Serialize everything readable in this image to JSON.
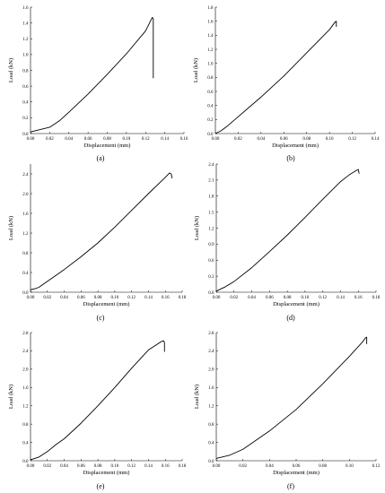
{
  "chart_data": [
    {
      "type": "line",
      "panel_label": "(a)",
      "xlabel": "Displacement (mm)",
      "ylabel": "Load (kN)",
      "xlim": [
        0,
        0.16
      ],
      "ylim": [
        0,
        1.6
      ],
      "xticks": [
        "0.00",
        "0.02",
        "0.04",
        "0.06",
        "0.08",
        "0.10",
        "0.12",
        "0.14",
        "0.16"
      ],
      "yticks": [
        "0.0",
        "0.2",
        "0.4",
        "0.6",
        "0.8",
        "1.0",
        "1.2",
        "1.4",
        "1.6"
      ],
      "x": [
        0.0,
        0.01,
        0.02,
        0.03,
        0.04,
        0.06,
        0.08,
        0.1,
        0.12,
        0.127,
        0.128,
        0.128
      ],
      "y": [
        0.02,
        0.05,
        0.08,
        0.16,
        0.27,
        0.5,
        0.75,
        1.01,
        1.3,
        1.47,
        1.45,
        0.7
      ]
    },
    {
      "type": "line",
      "panel_label": "(b)",
      "xlabel": "Displacement (mm)",
      "ylabel": "Load (kN)",
      "xlim": [
        0,
        0.14
      ],
      "ylim": [
        0,
        1.8
      ],
      "xticks": [
        "0.00",
        "0.02",
        "0.04",
        "0.06",
        "0.08",
        "0.10",
        "0.12",
        "0.14"
      ],
      "yticks": [
        "0.0",
        "0.2",
        "0.4",
        "0.6",
        "0.8",
        "1.0",
        "1.2",
        "1.4",
        "1.6",
        "1.8"
      ],
      "x": [
        0.0,
        0.005,
        0.01,
        0.02,
        0.04,
        0.06,
        0.08,
        0.1,
        0.105,
        0.106,
        0.106
      ],
      "y": [
        0.0,
        0.04,
        0.1,
        0.24,
        0.52,
        0.82,
        1.15,
        1.48,
        1.59,
        1.6,
        1.52
      ]
    },
    {
      "type": "line",
      "panel_label": "(c)",
      "xlabel": "Displacement (mm)",
      "ylabel": "Load (kN)",
      "xlim": [
        0,
        0.18
      ],
      "ylim": [
        0,
        2.6
      ],
      "xticks": [
        "0.00",
        "0.02",
        "0.04",
        "0.06",
        "0.08",
        "0.10",
        "0.12",
        "0.14",
        "0.16",
        "0.18"
      ],
      "yticks": [
        "0.0",
        "0.4",
        "0.8",
        "1.2",
        "1.6",
        "2.0",
        "2.4"
      ],
      "x": [
        0.0,
        0.005,
        0.01,
        0.02,
        0.04,
        0.06,
        0.08,
        0.1,
        0.12,
        0.14,
        0.16,
        0.165,
        0.167,
        0.168
      ],
      "y": [
        0.05,
        0.07,
        0.1,
        0.22,
        0.46,
        0.72,
        1.0,
        1.32,
        1.66,
        2.0,
        2.33,
        2.42,
        2.4,
        2.31
      ]
    },
    {
      "type": "line",
      "panel_label": "(d)",
      "xlabel": "Displacement (mm)",
      "ylabel": "Load (kN)",
      "xlim": [
        0,
        0.18
      ],
      "ylim": [
        0,
        2.4
      ],
      "xticks": [
        "0.00",
        "0.02",
        "0.04",
        "0.06",
        "0.08",
        "0.10",
        "0.12",
        "0.14",
        "0.16",
        "0.18"
      ],
      "yticks": [
        "0.0",
        "0.3",
        "0.6",
        "0.9",
        "1.2",
        "1.5",
        "1.8",
        "2.1",
        "2.4"
      ],
      "x": [
        0.0,
        0.01,
        0.02,
        0.04,
        0.06,
        0.08,
        0.1,
        0.12,
        0.14,
        0.15,
        0.158,
        0.16,
        0.161
      ],
      "y": [
        0.02,
        0.1,
        0.2,
        0.46,
        0.76,
        1.07,
        1.4,
        1.74,
        2.07,
        2.2,
        2.28,
        2.3,
        2.22
      ]
    },
    {
      "type": "line",
      "panel_label": "(e)",
      "xlabel": "Displacement (mm)",
      "ylabel": "Load (kN)",
      "xlim": [
        0,
        0.18
      ],
      "ylim": [
        0,
        2.8
      ],
      "xticks": [
        "0.00",
        "0.02",
        "0.04",
        "0.06",
        "0.08",
        "0.10",
        "0.12",
        "0.14",
        "0.16",
        "0.18"
      ],
      "yticks": [
        "0.0",
        "0.4",
        "0.8",
        "1.2",
        "1.6",
        "2.0",
        "2.4",
        "2.8"
      ],
      "x": [
        0.0,
        0.01,
        0.02,
        0.03,
        0.04,
        0.06,
        0.08,
        0.1,
        0.12,
        0.14,
        0.155,
        0.158,
        0.159,
        0.159
      ],
      "y": [
        0.02,
        0.08,
        0.2,
        0.35,
        0.48,
        0.82,
        1.2,
        1.6,
        2.02,
        2.42,
        2.6,
        2.62,
        2.58,
        2.38
      ]
    },
    {
      "type": "line",
      "panel_label": "(f)",
      "xlabel": "Displacement (mm)",
      "ylabel": "Load (kN)",
      "xlim": [
        0,
        0.12
      ],
      "ylim": [
        0,
        2.8
      ],
      "xticks": [
        "0.00",
        "0.02",
        "0.04",
        "0.06",
        "0.08",
        "0.10",
        "0.12"
      ],
      "yticks": [
        "0.0",
        "0.4",
        "0.8",
        "1.2",
        "1.6",
        "2.0",
        "2.4",
        "2.8"
      ],
      "x": [
        0.0,
        0.01,
        0.02,
        0.04,
        0.06,
        0.08,
        0.1,
        0.11,
        0.112,
        0.113,
        0.113
      ],
      "y": [
        0.05,
        0.12,
        0.25,
        0.65,
        1.12,
        1.68,
        2.28,
        2.6,
        2.68,
        2.7,
        2.55
      ]
    }
  ]
}
